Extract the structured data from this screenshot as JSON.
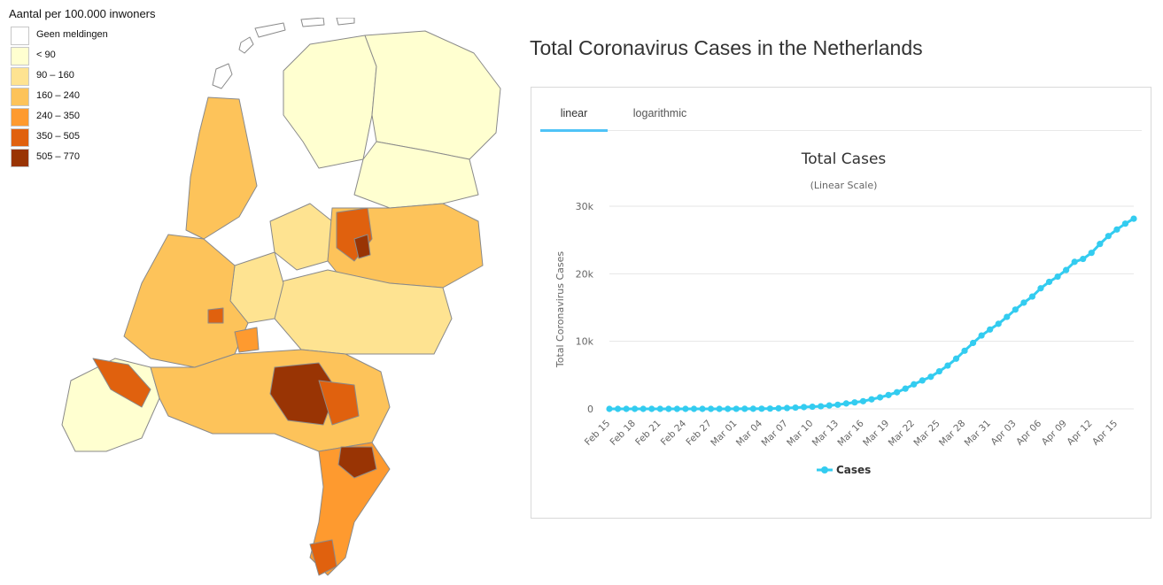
{
  "map_legend": {
    "title": "Aantal per 100.000 inwoners",
    "items": [
      {
        "label": "Geen meldingen",
        "color": "#ffffff"
      },
      {
        "label": "< 90",
        "color": "#ffffd0"
      },
      {
        "label": "90 – 160",
        "color": "#fee391"
      },
      {
        "label": "160 – 240",
        "color": "#fdc35a"
      },
      {
        "label": "240 – 350",
        "color": "#fe9a2f"
      },
      {
        "label": "350 – 505",
        "color": "#e0610e"
      },
      {
        "label": "505 – 770",
        "color": "#993404"
      }
    ]
  },
  "page_title": "Total Coronavirus Cases in the Netherlands",
  "tabs": [
    {
      "label": "linear",
      "active": true
    },
    {
      "label": "logarithmic",
      "active": false
    }
  ],
  "chart_data": {
    "type": "line",
    "title": "Total Cases",
    "subtitle": "(Linear Scale)",
    "xlabel": "",
    "ylabel": "Total Coronavirus Cases",
    "ylim": [
      0,
      30000
    ],
    "y_ticks": [
      "0",
      "10k",
      "20k",
      "30k"
    ],
    "x_tick_labels": [
      "Feb 15",
      "Feb 18",
      "Feb 21",
      "Feb 24",
      "Feb 27",
      "Mar 01",
      "Mar 04",
      "Mar 07",
      "Mar 10",
      "Mar 13",
      "Mar 16",
      "Mar 19",
      "Mar 22",
      "Mar 25",
      "Mar 28",
      "Mar 31",
      "Apr 03",
      "Apr 06",
      "Apr 09",
      "Apr 12",
      "Apr 15"
    ],
    "x_start": "2020-02-15",
    "grid": true,
    "legend_position": "bottom",
    "line_color": "#33ccf0",
    "series": [
      {
        "name": "Cases",
        "values": [
          0,
          0,
          0,
          0,
          0,
          0,
          0,
          0,
          0,
          0,
          0,
          0,
          0,
          1,
          2,
          7,
          13,
          18,
          24,
          38,
          82,
          128,
          188,
          265,
          321,
          382,
          503,
          614,
          804,
          959,
          1135,
          1413,
          1705,
          2051,
          2460,
          2994,
          3631,
          4204,
          4749,
          5560,
          6412,
          7431,
          8603,
          9762,
          10866,
          11750,
          12595,
          13614,
          14697,
          15723,
          16627,
          17851,
          18803,
          19580,
          20549,
          21762,
          22194,
          23097,
          24413,
          25587,
          26551,
          27419,
          28153
        ]
      }
    ]
  }
}
